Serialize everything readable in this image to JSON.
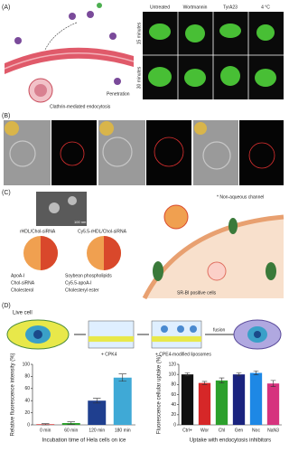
{
  "figure": {
    "panel_a": {
      "label": "(A)",
      "schematic_labels": [
        "Clathrin-mediated endocytosis",
        "Penetration"
      ],
      "column_headers": [
        "Untreated",
        "Wortmannin",
        "TyrA23",
        "4 °C"
      ],
      "row_labels": [
        "15 minutes",
        "30 minutes"
      ]
    },
    "panel_b": {
      "label": "(B)"
    },
    "panel_c": {
      "label": "(C)",
      "particle_labels": [
        "rHDL/Chol-siRNA",
        "Cy5.5-rHDL/Chol-siRNA"
      ],
      "scale_bar": "100 nm",
      "legend": [
        "ApoA-I",
        "Soybean phospholipids",
        "Chol-siRNA",
        "Cy5.5-apoA-I",
        "Cholesterol",
        "Cholesteryl ester"
      ],
      "channel_note": "* Non-aqueous channel",
      "cell_label": "SR-BI positive cells"
    },
    "panel_d": {
      "label": "(D)",
      "title": "Live cell",
      "step_labels": [
        "+ CPK4",
        "+ CPE4-modified liposomes"
      ],
      "fusion_label": "fusion"
    }
  },
  "chart_data": [
    {
      "type": "bar",
      "y_label": "Relative fluorescence intensity (%)",
      "x_label": "Incubation time of Hela cells on ice",
      "categories": [
        "0 min",
        "60 min",
        "120 min",
        "180 min"
      ],
      "values": [
        1,
        3,
        40,
        78
      ],
      "errors": [
        1,
        2,
        4,
        6
      ],
      "colors": [
        "#d62728",
        "#2ca02c",
        "#1f3f8f",
        "#3fa9d6"
      ],
      "ylim": [
        0,
        100
      ],
      "yticks": [
        0,
        20,
        40,
        60,
        80,
        100
      ]
    },
    {
      "type": "bar",
      "y_label": "Fluorescence cellular uptake (%)",
      "x_label": "Uptake with endocytosis inhibitors",
      "categories": [
        "Ctrl+",
        "Wor",
        "Chl",
        "Gen",
        "Noc",
        "NaN3"
      ],
      "values": [
        100,
        83,
        88,
        100,
        103,
        82
      ],
      "errors": [
        3,
        3,
        5,
        3,
        4,
        6
      ],
      "colors": [
        "#111111",
        "#d62728",
        "#2ca02c",
        "#1a237e",
        "#1e88e5",
        "#d6337e"
      ],
      "ylim": [
        0,
        120
      ],
      "yticks": [
        0,
        20,
        40,
        60,
        80,
        100,
        120
      ]
    }
  ]
}
